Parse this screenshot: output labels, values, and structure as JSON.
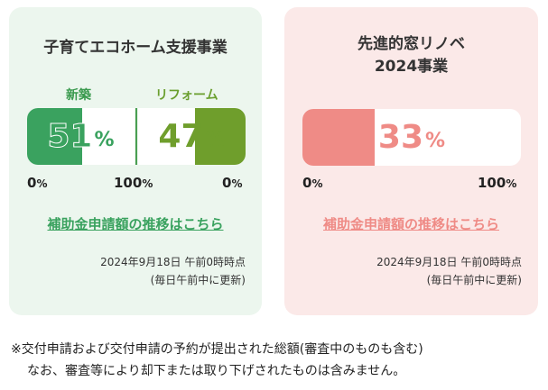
{
  "cards": {
    "kosodate": {
      "title": "子育てエコホーム支援事業",
      "shinchiku": {
        "label": "新築",
        "value": 51,
        "unit": "%"
      },
      "reform": {
        "label": "リフォーム",
        "value": 47,
        "unit": "%"
      },
      "axis": {
        "left_zero": "0",
        "hundred": "100",
        "right_zero": "0",
        "unit": "%"
      },
      "link": "補助金申請額の推移はこちら",
      "timestamp": "2024年9月18日 午前0時時点",
      "update_note": "(毎日午前中に更新)",
      "colors": {
        "shinchiku": "#3aa25f",
        "reform": "#6f9e2c",
        "background": "#ecf6ee"
      }
    },
    "madoreno": {
      "title_line1": "先進的窓リノベ",
      "title_line2": "2024事業",
      "value": 33,
      "unit": "%",
      "axis": {
        "zero": "0",
        "hundred": "100",
        "unit": "%"
      },
      "link": "補助金申請額の推移はこちら",
      "timestamp": "2024年9月18日 午前0時時点",
      "update_note": "(毎日午前中に更新)",
      "colors": {
        "fill": "#ef8b86",
        "background": "#fbe9e8"
      }
    }
  },
  "notes": {
    "line1": "※交付申請および交付申請の予約が提出された総額(審査中のものも含む)",
    "line2": "なお、審査等により却下または取り下げされたものは含みません。"
  }
}
